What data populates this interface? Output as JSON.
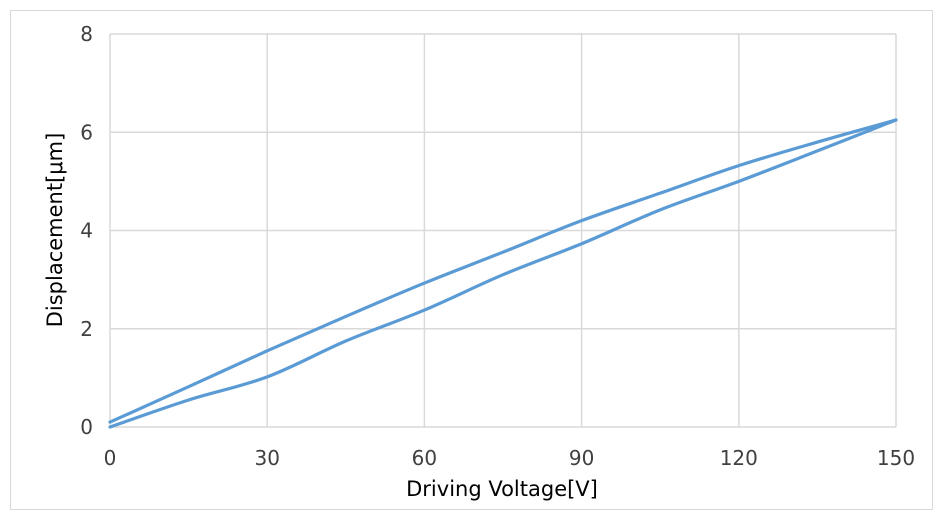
{
  "chart_data": {
    "type": "line",
    "title": "",
    "xlabel": "Driving Voltage[V]",
    "ylabel": "Displacement[μm]",
    "xlim": [
      0,
      150
    ],
    "ylim": [
      0,
      8
    ],
    "xticks": [
      0,
      30,
      60,
      90,
      120,
      150
    ],
    "yticks": [
      0,
      2,
      4,
      6,
      8
    ],
    "x_tick_labels": [
      "0",
      "30",
      "60",
      "90",
      "120",
      "150"
    ],
    "y_tick_labels": [
      "0",
      "2",
      "4",
      "6",
      "8"
    ],
    "grid": true,
    "legend": "none",
    "line_color": "#5b9bd5",
    "series": [
      {
        "x": [
          0,
          15,
          30,
          45,
          60,
          75,
          90,
          105,
          120,
          135,
          150
        ],
        "values": [
          0.1,
          0.82,
          1.55,
          2.25,
          2.93,
          3.56,
          4.2,
          4.76,
          5.32,
          5.8,
          6.25
        ]
      },
      {
        "x": [
          0,
          15,
          30,
          45,
          60,
          75,
          90,
          105,
          120,
          135,
          150
        ],
        "values": [
          0.0,
          0.55,
          1.02,
          1.75,
          2.38,
          3.1,
          3.73,
          4.42,
          5.0,
          5.62,
          6.25
        ]
      }
    ]
  }
}
